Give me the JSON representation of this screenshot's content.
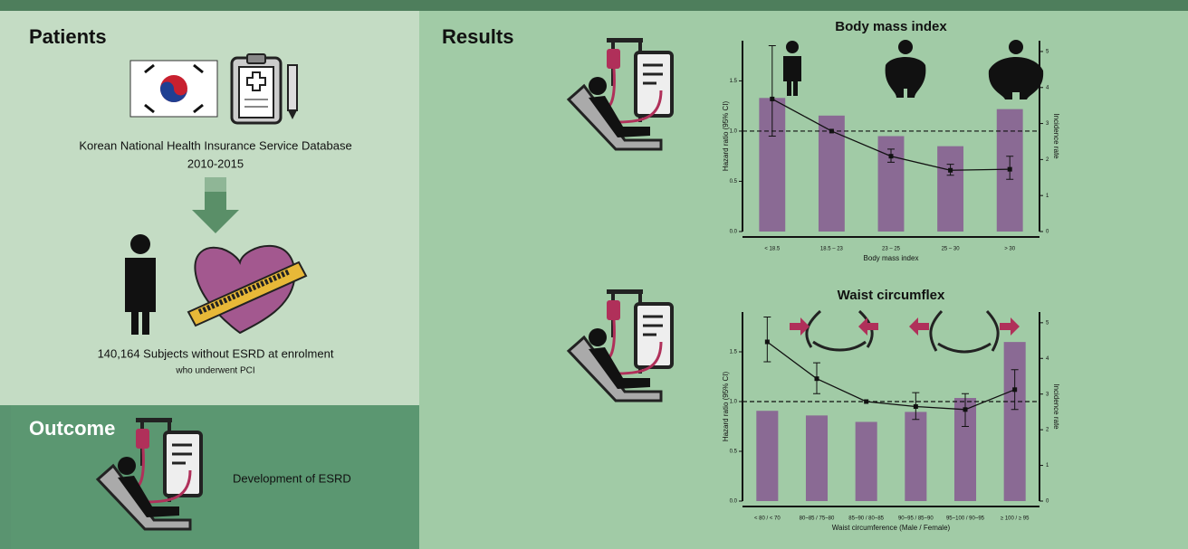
{
  "left": {
    "title": "Patients",
    "database": "Korean National Health Insurance Service Database",
    "years": "2010-2015",
    "subjects": "140,164 Subjects without ESRD at enrolment",
    "subjects_note": "who underwent PCI"
  },
  "outcome": {
    "title": "Outcome",
    "text": "Development of ESRD"
  },
  "results": {
    "title": "Results"
  },
  "chart_data": [
    {
      "type": "combo",
      "title": "Body mass index",
      "x_label": "Body mass index",
      "y_label": "Hazard ratio (95% CI)",
      "y2_label": "Incidence rate",
      "categories": [
        "< 18.5",
        "18.5 – 23",
        "23 – 25",
        "25 – 30",
        "> 30"
      ],
      "ylim": [
        0,
        1.9
      ],
      "yticks": [
        {
          "value": 0,
          "label": "0.0"
        },
        {
          "value": 0.5,
          "label": "0.5"
        },
        {
          "value": 1,
          "label": "1.0"
        },
        {
          "value": 1.5,
          "label": "1.5"
        }
      ],
      "y2lim": [
        0,
        5.3
      ],
      "y2ticks": [
        0,
        1,
        2,
        3,
        4,
        5
      ],
      "reference_line": 1,
      "series": [
        {
          "kind": "bar",
          "axis": "y2",
          "color": "#8a6a94",
          "values": [
            3.71,
            3.22,
            2.65,
            2.37,
            3.4
          ]
        },
        {
          "kind": "line",
          "color": "#111111",
          "values": [
            1.32,
            1.0,
            0.75,
            0.61,
            0.62
          ],
          "ci_low": [
            0.95,
            null,
            0.69,
            0.56,
            0.52
          ],
          "ci_high": [
            1.85,
            null,
            0.82,
            0.67,
            0.75
          ]
        }
      ]
    },
    {
      "type": "combo",
      "title": "Waist circumflex",
      "x_label": "Waist circumference (Male / Female)",
      "y_label": "Hazard ratio (95% CI)",
      "y2_label": "Incidence rate",
      "categories": [
        "< 80 / < 70",
        "80~85 / 75~80",
        "85~90 / 80~85",
        "90~95 / 85~90",
        "95~100 / 90~95",
        "≥ 100 / ≥ 95"
      ],
      "ylim": [
        0,
        1.9
      ],
      "yticks": [
        {
          "value": 0,
          "label": "0.0"
        },
        {
          "value": 0.5,
          "label": "0.5"
        },
        {
          "value": 1,
          "label": "1.0"
        },
        {
          "value": 1.5,
          "label": "1.5"
        }
      ],
      "y2lim": [
        0,
        5.3
      ],
      "y2ticks": [
        0,
        1,
        2,
        3,
        4,
        5
      ],
      "reference_line": 1,
      "series": [
        {
          "kind": "bar",
          "axis": "y2",
          "color": "#8a6a94",
          "values": [
            2.53,
            2.4,
            2.22,
            2.5,
            2.89,
            4.46
          ]
        },
        {
          "kind": "line",
          "color": "#111111",
          "values": [
            1.6,
            1.23,
            1.0,
            0.95,
            0.92,
            1.12
          ],
          "ci_low": [
            1.4,
            1.08,
            null,
            0.82,
            0.75,
            0.92
          ],
          "ci_high": [
            1.85,
            1.39,
            null,
            1.09,
            1.08,
            1.32
          ]
        }
      ]
    }
  ]
}
